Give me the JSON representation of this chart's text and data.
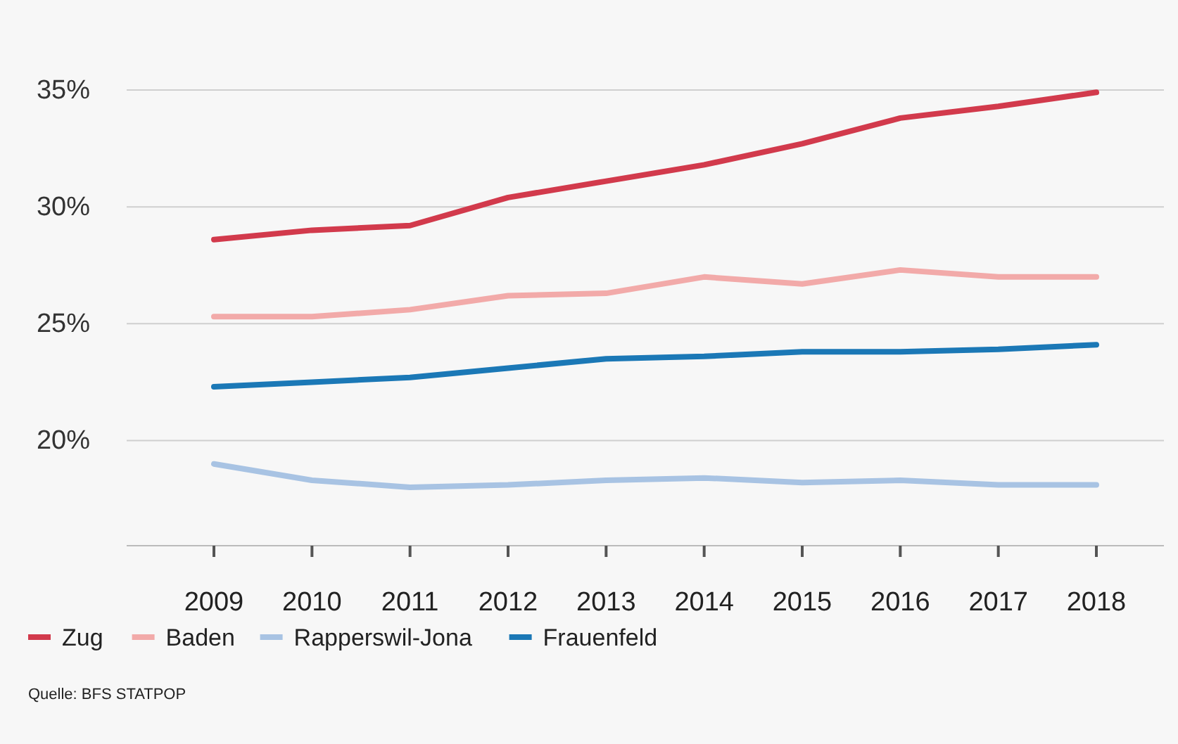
{
  "chart_data": {
    "type": "line",
    "categories": [
      "2009",
      "2010",
      "2011",
      "2012",
      "2013",
      "2014",
      "2015",
      "2016",
      "2017",
      "2018"
    ],
    "series": [
      {
        "name": "Zug",
        "color": "#d23a4c",
        "values": [
          28.6,
          29.0,
          29.2,
          30.4,
          31.1,
          31.8,
          32.7,
          33.8,
          34.3,
          34.9
        ]
      },
      {
        "name": "Baden",
        "color": "#f2aaa9",
        "values": [
          25.3,
          25.3,
          25.6,
          26.2,
          26.3,
          27.0,
          26.7,
          27.3,
          27.0,
          27.0
        ]
      },
      {
        "name": "Rapperswil-Jona",
        "color": "#a8c3e3",
        "values": [
          19.0,
          18.3,
          18.0,
          18.1,
          18.3,
          18.4,
          18.2,
          18.3,
          18.1,
          18.1
        ]
      },
      {
        "name": "Frauenfeld",
        "color": "#1b78b6",
        "values": [
          22.3,
          22.5,
          22.7,
          23.1,
          23.5,
          23.6,
          23.8,
          23.8,
          23.9,
          24.1
        ]
      }
    ],
    "ylim": [
      15.5,
      35
    ],
    "yticks": [
      {
        "value": 20,
        "label": "20%"
      },
      {
        "value": 25,
        "label": "25%"
      },
      {
        "value": 30,
        "label": "30%"
      },
      {
        "value": 35,
        "label": "35%"
      }
    ],
    "grid": "y",
    "legend": "bottom",
    "marker": "none",
    "line_style": "solid",
    "annotations": [
      "Quelle: BFS STATPOP"
    ]
  }
}
